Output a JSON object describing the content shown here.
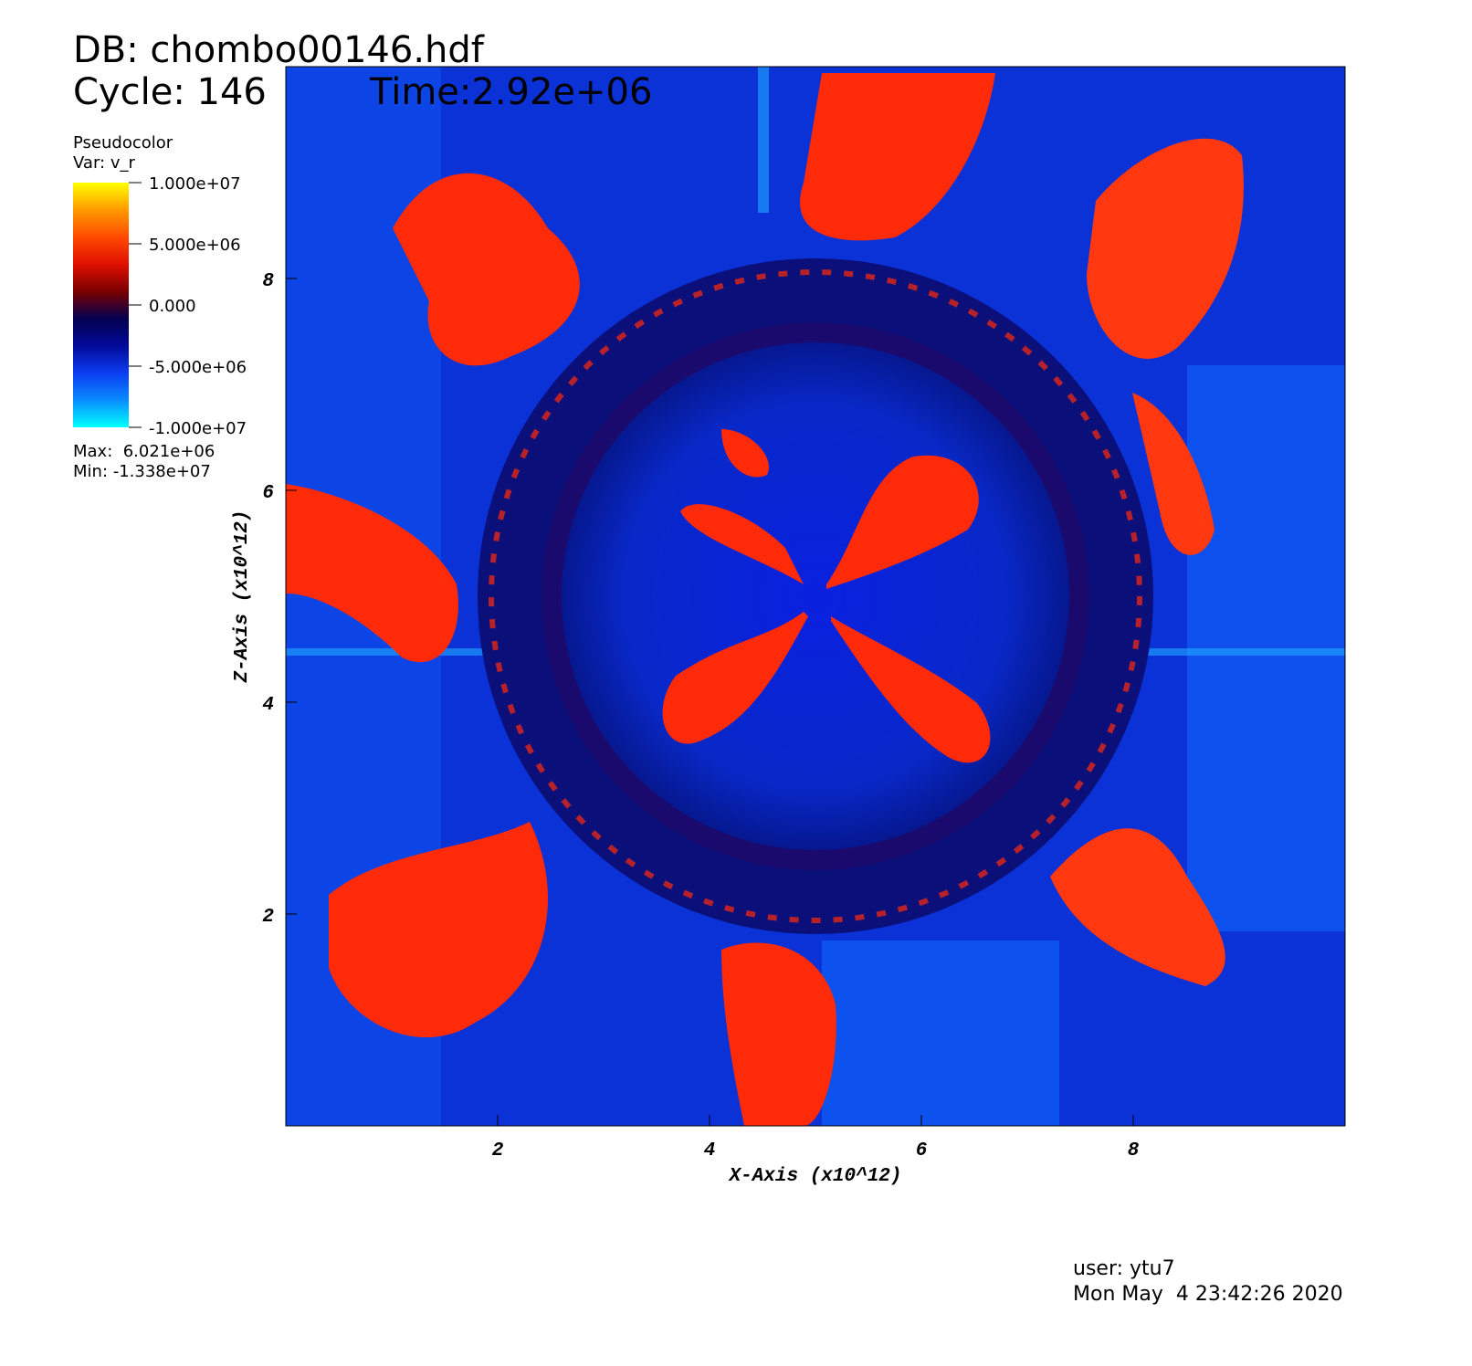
{
  "chart_data": {
    "type": "pseudocolor",
    "database": "DB: chombo00146.hdf",
    "cycle": "Cycle: 146",
    "time": "Time:2.92e+06",
    "plot_name": "Pseudocolor",
    "variable": "Var: v_r",
    "max_label": "Max:  6.021e+06",
    "min_label": "Min: -1.338e+07",
    "xlabel": "X-Axis (x10^12)",
    "ylabel": "Z-Axis (x10^12)",
    "xlim": [
      0,
      10
    ],
    "ylim": [
      0,
      10
    ],
    "xticks": [
      2,
      4,
      6,
      8
    ],
    "yticks": [
      2,
      4,
      6,
      8
    ],
    "colorbar": {
      "lim": [
        -10000000,
        10000000
      ],
      "ticks": [
        {
          "value": 10000000,
          "label": "1.000e+07"
        },
        {
          "value": 5000000,
          "label": "5.000e+06"
        },
        {
          "value": 0,
          "label": "0.000"
        },
        {
          "value": -5000000,
          "label": "-5.000e+06"
        },
        {
          "value": -10000000,
          "label": "-1.000e+07"
        }
      ],
      "colors": [
        "#00ffff",
        "#0a8cff",
        "#0b3cf0",
        "#020a9a",
        "#04004f",
        "#7a0000",
        "#e01000",
        "#ff4a00",
        "#ff9a00",
        "#ffff00"
      ]
    },
    "user": "user: ytu7",
    "date": "Mon May  4 23:42:26 2020"
  }
}
